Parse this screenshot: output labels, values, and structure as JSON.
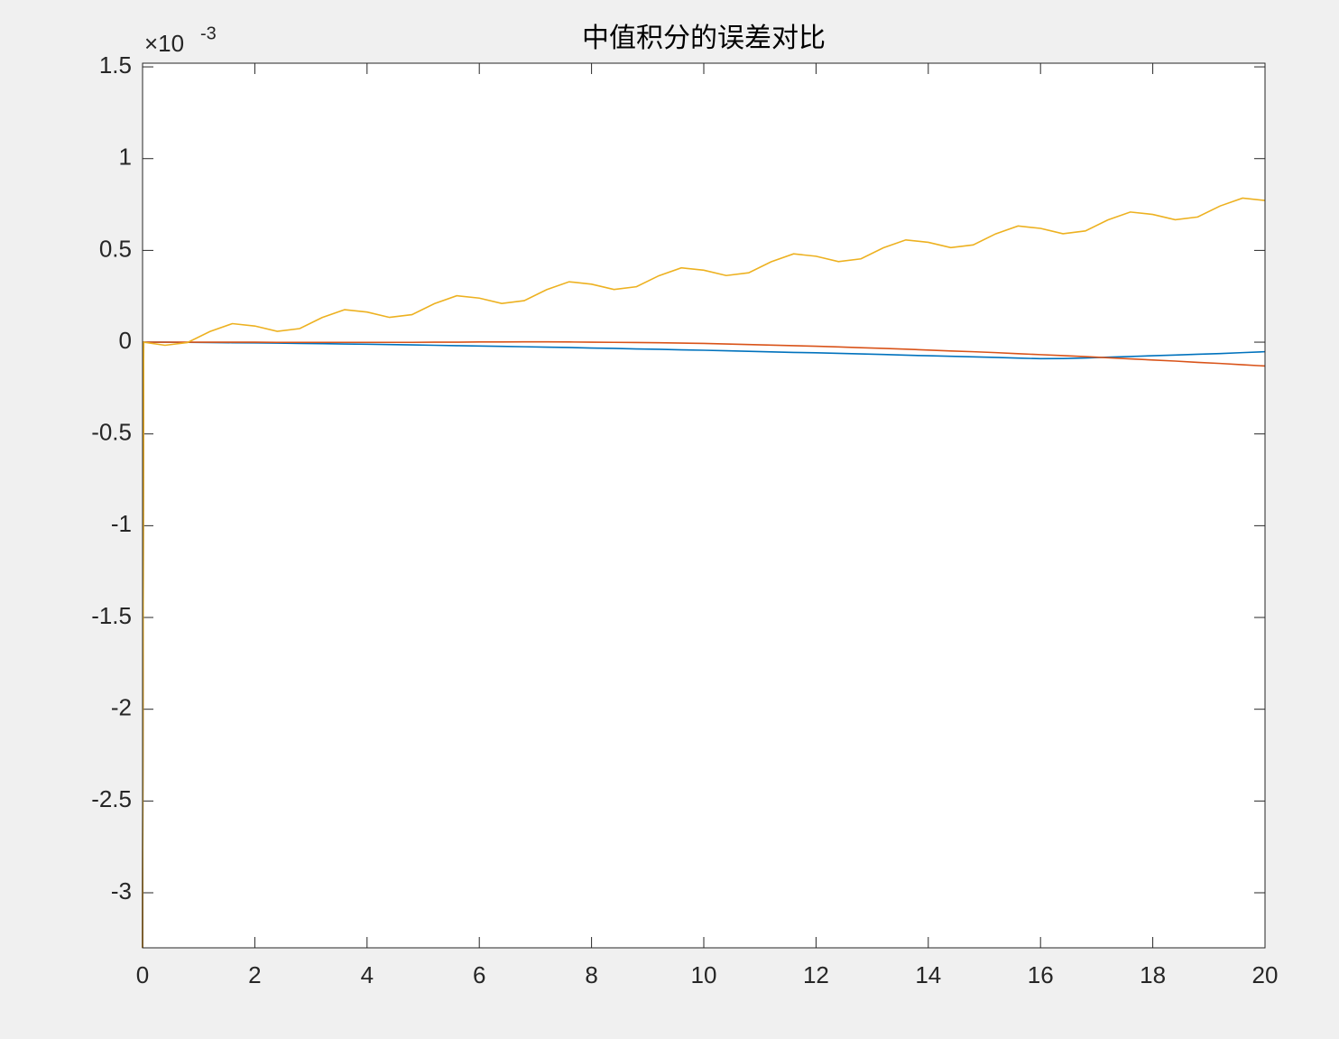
{
  "chart_data": {
    "type": "line",
    "title": "中值积分的误差对比",
    "y_multiplier": "×10",
    "y_exponent": "-3",
    "xlim": [
      0,
      20
    ],
    "xticks": [
      0,
      2,
      4,
      6,
      8,
      10,
      12,
      14,
      16,
      18,
      20
    ],
    "ylim": [
      -3.3,
      1.52
    ],
    "yticks": [
      1.5,
      1,
      0.5,
      0,
      -0.5,
      -1,
      -1.5,
      -2,
      -2.5,
      -3
    ],
    "grid": false,
    "box": true,
    "x": [
      0,
      0.02,
      0.4,
      0.8,
      1.2,
      1.6,
      2,
      2.4,
      2.8,
      3.2,
      3.6,
      4,
      4.4,
      4.8,
      5.2,
      5.6,
      6,
      6.4,
      6.8,
      7.2,
      7.6,
      8,
      8.4,
      8.8,
      9.2,
      9.6,
      10,
      10.4,
      10.8,
      11.2,
      11.6,
      12,
      12.4,
      12.8,
      13.2,
      13.6,
      14,
      14.4,
      14.8,
      15.2,
      15.6,
      16,
      16.4,
      16.8,
      17.2,
      17.6,
      18,
      18.4,
      18.8,
      19.2,
      19.6,
      20
    ],
    "series": [
      {
        "color": "#0072bd",
        "values": [
          -3.3,
          0,
          0,
          -0.001,
          -0.002,
          -0.003,
          -0.004,
          -0.005,
          -0.007,
          -0.008,
          -0.01,
          -0.011,
          -0.013,
          -0.015,
          -0.017,
          -0.019,
          -0.021,
          -0.023,
          -0.025,
          -0.027,
          -0.029,
          -0.032,
          -0.034,
          -0.037,
          -0.039,
          -0.042,
          -0.044,
          -0.047,
          -0.05,
          -0.053,
          -0.056,
          -0.058,
          -0.061,
          -0.064,
          -0.067,
          -0.071,
          -0.074,
          -0.077,
          -0.08,
          -0.083,
          -0.087,
          -0.09,
          -0.089,
          -0.086,
          -0.082,
          -0.078,
          -0.074,
          -0.07,
          -0.066,
          -0.062,
          -0.057,
          -0.052
        ]
      },
      {
        "color": "#d95319",
        "values": [
          -3.3,
          0,
          0,
          0,
          0,
          0,
          0,
          -0.001,
          -0.001,
          -0.001,
          -0.001,
          -0.001,
          -0.001,
          -0.001,
          0,
          0,
          0.001,
          0.001,
          0.002,
          0.002,
          0.001,
          0,
          -0.001,
          -0.002,
          -0.003,
          -0.005,
          -0.007,
          -0.01,
          -0.013,
          -0.016,
          -0.019,
          -0.022,
          -0.026,
          -0.03,
          -0.034,
          -0.038,
          -0.043,
          -0.048,
          -0.052,
          -0.057,
          -0.063,
          -0.068,
          -0.073,
          -0.079,
          -0.085,
          -0.091,
          -0.097,
          -0.103,
          -0.11,
          -0.116,
          -0.123,
          -0.13
        ]
      },
      {
        "color": "#edb120",
        "values": [
          -3.3,
          0,
          -0.017,
          -0.002,
          0.058,
          0.101,
          0.088,
          0.059,
          0.074,
          0.134,
          0.177,
          0.164,
          0.135,
          0.15,
          0.21,
          0.253,
          0.24,
          0.211,
          0.226,
          0.286,
          0.329,
          0.316,
          0.287,
          0.302,
          0.362,
          0.405,
          0.392,
          0.363,
          0.378,
          0.438,
          0.481,
          0.468,
          0.439,
          0.454,
          0.514,
          0.557,
          0.544,
          0.515,
          0.53,
          0.59,
          0.633,
          0.62,
          0.591,
          0.606,
          0.666,
          0.709,
          0.696,
          0.667,
          0.682,
          0.742,
          0.785,
          0.772
        ]
      }
    ]
  }
}
